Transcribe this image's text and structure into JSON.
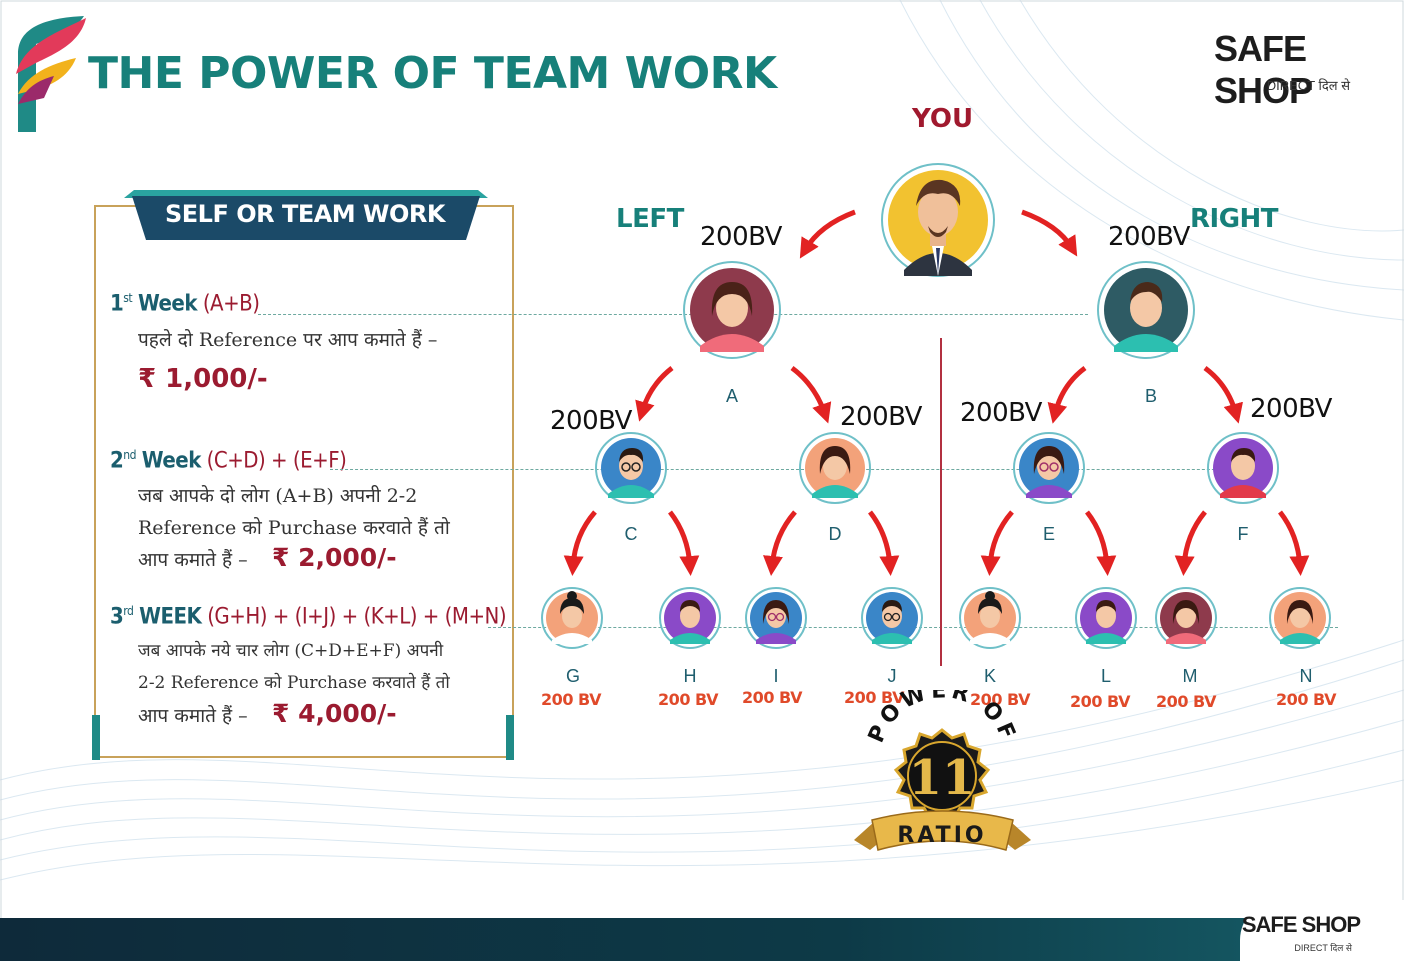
{
  "header": {
    "title": "THE POWER OF TEAM WORK",
    "brand_name": "SAFE SHOP",
    "brand_tagline": "DIRECT दिल से"
  },
  "panel": {
    "ribbon_title": "SELF OR TEAM WORK",
    "weeks": [
      {
        "ordinal": "1",
        "suffix": "st",
        "word": "Week",
        "formula": "(A+B)",
        "lines": [
          "पहले दो Reference पर आप कमाते हैं –"
        ],
        "amount": "₹ 1,000/-"
      },
      {
        "ordinal": "2",
        "suffix": "nd",
        "word": "Week",
        "formula": "(C+D) + (E+F)",
        "lines": [
          "जब आपके दो लोग (A+B) अपनी 2-2",
          "Reference को Purchase करवाते हैं तो",
          "आप कमाते हैं –"
        ],
        "amount": "₹ 2,000/-"
      },
      {
        "ordinal": "3",
        "suffix": "rd",
        "word": "WEEK",
        "formula": "(G+H) + (I+J) + (K+L) + (M+N)",
        "lines": [
          "जब आपके नये चार लोग (C+D+E+F) अपनी",
          "2-2 Reference को Purchase करवाते हैं तो",
          "आप कमाते हैं –"
        ],
        "amount": "₹ 4,000/-"
      }
    ]
  },
  "tree": {
    "you_label": "YOU",
    "left_label": "LEFT",
    "right_label": "RIGHT",
    "bv_big": "200BV",
    "bv_small": "200 BV",
    "level1": [
      "A",
      "B"
    ],
    "level2": [
      "C",
      "D",
      "E",
      "F"
    ],
    "level3": [
      "G",
      "H",
      "I",
      "J",
      "K",
      "L",
      "M",
      "N"
    ]
  },
  "badge": {
    "arc_text": "POWER OF",
    "number": "11",
    "ribbon_text": "RATIO"
  },
  "colors": {
    "teal": "#17807a",
    "maroon": "#9b1b30",
    "arrow_red": "#e22222",
    "orange_bv": "#e04a2a",
    "gold": "#c8a25a"
  }
}
